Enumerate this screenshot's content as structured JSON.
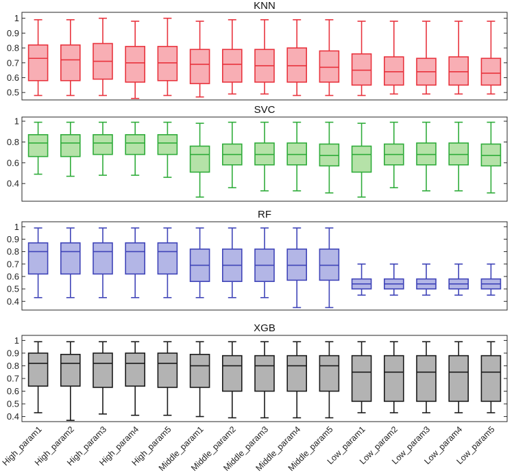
{
  "chart_data": {
    "categories": [
      "High_param1",
      "High_param2",
      "High_param3",
      "High_param4",
      "High_param5",
      "Middle_param1",
      "Middle_param2",
      "Middle_param3",
      "Middle_param4",
      "Middle_param5",
      "Low_param1",
      "Low_param2",
      "Low_param3",
      "Low_param4",
      "Low_param5"
    ],
    "panels": [
      {
        "type": "boxplot",
        "title": "KNN",
        "ylim": [
          0.45,
          1.04
        ],
        "yticks": [
          0.5,
          0.6,
          0.7,
          0.8,
          0.9,
          1
        ],
        "ytick_labels": [
          "0.5",
          "0.6",
          "0.7",
          "0.8",
          "0.9",
          "1"
        ],
        "stroke": "#e8333d",
        "fill": "#f8aeb4",
        "boxes": [
          {
            "min": 0.48,
            "q1": 0.58,
            "median": 0.73,
            "q3": 0.82,
            "max": 0.99
          },
          {
            "min": 0.48,
            "q1": 0.58,
            "median": 0.72,
            "q3": 0.82,
            "max": 0.99
          },
          {
            "min": 0.48,
            "q1": 0.59,
            "median": 0.71,
            "q3": 0.83,
            "max": 1.0
          },
          {
            "min": 0.46,
            "q1": 0.57,
            "median": 0.7,
            "q3": 0.81,
            "max": 0.98
          },
          {
            "min": 0.48,
            "q1": 0.58,
            "median": 0.7,
            "q3": 0.81,
            "max": 1.0
          },
          {
            "min": 0.47,
            "q1": 0.56,
            "median": 0.69,
            "q3": 0.79,
            "max": 0.98
          },
          {
            "min": 0.49,
            "q1": 0.57,
            "median": 0.69,
            "q3": 0.79,
            "max": 0.99
          },
          {
            "min": 0.49,
            "q1": 0.57,
            "median": 0.68,
            "q3": 0.79,
            "max": 0.99
          },
          {
            "min": 0.48,
            "q1": 0.57,
            "median": 0.68,
            "q3": 0.8,
            "max": 0.99
          },
          {
            "min": 0.48,
            "q1": 0.57,
            "median": 0.67,
            "q3": 0.78,
            "max": 0.99
          },
          {
            "min": 0.48,
            "q1": 0.55,
            "median": 0.65,
            "q3": 0.76,
            "max": 0.98
          },
          {
            "min": 0.49,
            "q1": 0.55,
            "median": 0.64,
            "q3": 0.74,
            "max": 0.98
          },
          {
            "min": 0.49,
            "q1": 0.55,
            "median": 0.64,
            "q3": 0.73,
            "max": 0.98
          },
          {
            "min": 0.49,
            "q1": 0.55,
            "median": 0.64,
            "q3": 0.74,
            "max": 0.98
          },
          {
            "min": 0.49,
            "q1": 0.55,
            "median": 0.63,
            "q3": 0.73,
            "max": 0.98
          }
        ]
      },
      {
        "type": "boxplot",
        "title": "SVC",
        "ylim": [
          0.23,
          1.04
        ],
        "yticks": [
          0.4,
          0.6,
          0.8,
          1
        ],
        "ytick_labels": [
          "0.4",
          "0.6",
          "0.8",
          "1"
        ],
        "stroke": "#2fac3a",
        "fill": "#b5e2a8",
        "boxes": [
          {
            "min": 0.49,
            "q1": 0.66,
            "median": 0.79,
            "q3": 0.87,
            "max": 0.99
          },
          {
            "min": 0.47,
            "q1": 0.66,
            "median": 0.79,
            "q3": 0.87,
            "max": 0.99
          },
          {
            "min": 0.48,
            "q1": 0.68,
            "median": 0.79,
            "q3": 0.87,
            "max": 0.99
          },
          {
            "min": 0.48,
            "q1": 0.68,
            "median": 0.79,
            "q3": 0.87,
            "max": 0.99
          },
          {
            "min": 0.46,
            "q1": 0.68,
            "median": 0.79,
            "q3": 0.87,
            "max": 0.99
          },
          {
            "min": 0.27,
            "q1": 0.51,
            "median": 0.68,
            "q3": 0.76,
            "max": 0.98
          },
          {
            "min": 0.36,
            "q1": 0.58,
            "median": 0.68,
            "q3": 0.78,
            "max": 0.99
          },
          {
            "min": 0.33,
            "q1": 0.58,
            "median": 0.68,
            "q3": 0.79,
            "max": 0.99
          },
          {
            "min": 0.33,
            "q1": 0.58,
            "median": 0.68,
            "q3": 0.79,
            "max": 0.99
          },
          {
            "min": 0.31,
            "q1": 0.57,
            "median": 0.67,
            "q3": 0.78,
            "max": 0.99
          },
          {
            "min": 0.27,
            "q1": 0.51,
            "median": 0.68,
            "q3": 0.76,
            "max": 0.98
          },
          {
            "min": 0.36,
            "q1": 0.58,
            "median": 0.68,
            "q3": 0.78,
            "max": 0.99
          },
          {
            "min": 0.33,
            "q1": 0.58,
            "median": 0.68,
            "q3": 0.79,
            "max": 0.99
          },
          {
            "min": 0.33,
            "q1": 0.58,
            "median": 0.68,
            "q3": 0.79,
            "max": 0.99
          },
          {
            "min": 0.31,
            "q1": 0.57,
            "median": 0.67,
            "q3": 0.78,
            "max": 0.99
          }
        ]
      },
      {
        "type": "boxplot",
        "title": "RF",
        "ylim": [
          0.33,
          1.04
        ],
        "yticks": [
          0.4,
          0.5,
          0.6,
          0.7,
          0.8,
          0.9,
          1
        ],
        "ytick_labels": [
          "0.4",
          "0.5",
          "0.6",
          "0.7",
          "0.8",
          "0.9",
          "1"
        ],
        "stroke": "#3f44b8",
        "fill": "#b3b6e6",
        "boxes": [
          {
            "min": 0.43,
            "q1": 0.62,
            "median": 0.8,
            "q3": 0.87,
            "max": 0.99
          },
          {
            "min": 0.43,
            "q1": 0.62,
            "median": 0.8,
            "q3": 0.87,
            "max": 0.99
          },
          {
            "min": 0.43,
            "q1": 0.62,
            "median": 0.8,
            "q3": 0.87,
            "max": 0.99
          },
          {
            "min": 0.43,
            "q1": 0.62,
            "median": 0.8,
            "q3": 0.87,
            "max": 0.99
          },
          {
            "min": 0.43,
            "q1": 0.62,
            "median": 0.8,
            "q3": 0.87,
            "max": 0.99
          },
          {
            "min": 0.43,
            "q1": 0.56,
            "median": 0.69,
            "q3": 0.82,
            "max": 0.99
          },
          {
            "min": 0.43,
            "q1": 0.56,
            "median": 0.69,
            "q3": 0.82,
            "max": 0.99
          },
          {
            "min": 0.43,
            "q1": 0.56,
            "median": 0.69,
            "q3": 0.82,
            "max": 0.99
          },
          {
            "min": 0.35,
            "q1": 0.57,
            "median": 0.69,
            "q3": 0.82,
            "max": 0.99
          },
          {
            "min": 0.35,
            "q1": 0.57,
            "median": 0.69,
            "q3": 0.82,
            "max": 0.99
          },
          {
            "min": 0.45,
            "q1": 0.5,
            "median": 0.54,
            "q3": 0.58,
            "max": 0.7
          },
          {
            "min": 0.45,
            "q1": 0.5,
            "median": 0.54,
            "q3": 0.58,
            "max": 0.7
          },
          {
            "min": 0.45,
            "q1": 0.5,
            "median": 0.54,
            "q3": 0.58,
            "max": 0.7
          },
          {
            "min": 0.45,
            "q1": 0.5,
            "median": 0.54,
            "q3": 0.58,
            "max": 0.7
          },
          {
            "min": 0.45,
            "q1": 0.5,
            "median": 0.54,
            "q3": 0.58,
            "max": 0.7
          }
        ]
      },
      {
        "type": "boxplot",
        "title": "XGB",
        "ylim": [
          0.36,
          1.04
        ],
        "yticks": [
          0.4,
          0.5,
          0.6,
          0.7,
          0.8,
          0.9,
          1
        ],
        "ytick_labels": [
          "0.4",
          "0.5",
          "0.6",
          "0.7",
          "0.8",
          "0.9",
          "1"
        ],
        "stroke": "#1a1a1a",
        "fill": "#b3b3b3",
        "boxes": [
          {
            "min": 0.43,
            "q1": 0.64,
            "median": 0.82,
            "q3": 0.9,
            "max": 0.99
          },
          {
            "min": 0.37,
            "q1": 0.64,
            "median": 0.82,
            "q3": 0.89,
            "max": 0.99
          },
          {
            "min": 0.42,
            "q1": 0.63,
            "median": 0.82,
            "q3": 0.9,
            "max": 0.99
          },
          {
            "min": 0.41,
            "q1": 0.64,
            "median": 0.82,
            "q3": 0.9,
            "max": 0.99
          },
          {
            "min": 0.41,
            "q1": 0.63,
            "median": 0.82,
            "q3": 0.9,
            "max": 0.99
          },
          {
            "min": 0.4,
            "q1": 0.63,
            "median": 0.8,
            "q3": 0.89,
            "max": 0.99
          },
          {
            "min": 0.39,
            "q1": 0.6,
            "median": 0.8,
            "q3": 0.88,
            "max": 0.99
          },
          {
            "min": 0.39,
            "q1": 0.6,
            "median": 0.8,
            "q3": 0.88,
            "max": 0.99
          },
          {
            "min": 0.39,
            "q1": 0.6,
            "median": 0.8,
            "q3": 0.88,
            "max": 0.99
          },
          {
            "min": 0.39,
            "q1": 0.6,
            "median": 0.8,
            "q3": 0.88,
            "max": 0.99
          },
          {
            "min": 0.43,
            "q1": 0.52,
            "median": 0.75,
            "q3": 0.88,
            "max": 0.99
          },
          {
            "min": 0.43,
            "q1": 0.52,
            "median": 0.75,
            "q3": 0.88,
            "max": 0.99
          },
          {
            "min": 0.43,
            "q1": 0.52,
            "median": 0.75,
            "q3": 0.88,
            "max": 0.99
          },
          {
            "min": 0.43,
            "q1": 0.52,
            "median": 0.75,
            "q3": 0.88,
            "max": 0.99
          },
          {
            "min": 0.43,
            "q1": 0.52,
            "median": 0.75,
            "q3": 0.88,
            "max": 0.99
          }
        ]
      }
    ]
  }
}
